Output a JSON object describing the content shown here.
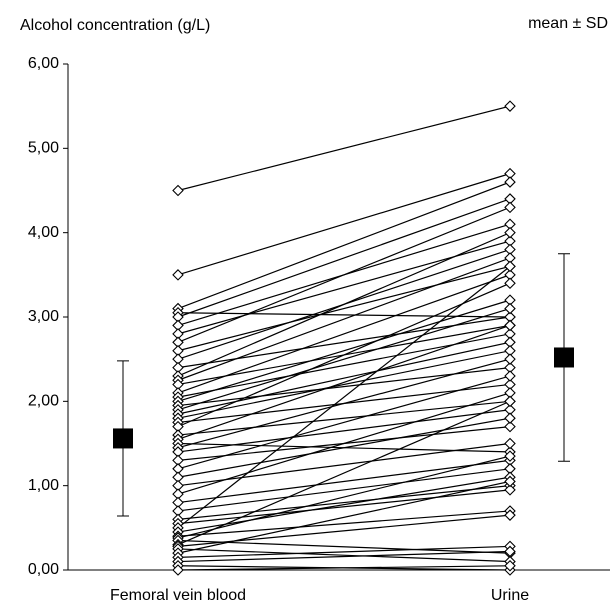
{
  "chart_data": {
    "type": "paired",
    "title": "Alcohol concentration (g/L)",
    "annotation": "mean ± SD",
    "categories": [
      "Femoral vein blood",
      "Urine"
    ],
    "ylim": [
      0,
      6
    ],
    "yticks": [
      {
        "value": 0,
        "label": "0,00"
      },
      {
        "value": 1,
        "label": "1,00"
      },
      {
        "value": 2,
        "label": "2,00"
      },
      {
        "value": 3,
        "label": "3,00"
      },
      {
        "value": 4,
        "label": "4,00"
      },
      {
        "value": 5,
        "label": "5,00"
      },
      {
        "value": 6,
        "label": "6,00"
      }
    ],
    "color": "#000000",
    "summary": [
      {
        "mean": 1.56,
        "sd": 0.92
      },
      {
        "mean": 2.52,
        "sd": 1.23
      }
    ],
    "series": [
      {
        "values": [
          4.5,
          5.5
        ]
      },
      {
        "values": [
          3.5,
          4.7
        ]
      },
      {
        "values": [
          3.1,
          4.6
        ]
      },
      {
        "values": [
          3.05,
          3.0
        ]
      },
      {
        "values": [
          3.0,
          4.4
        ]
      },
      {
        "values": [
          2.9,
          4.1
        ]
      },
      {
        "values": [
          2.8,
          3.9
        ]
      },
      {
        "values": [
          2.7,
          4.3
        ]
      },
      {
        "values": [
          2.6,
          3.6
        ]
      },
      {
        "values": [
          2.5,
          3.8
        ]
      },
      {
        "values": [
          2.4,
          3.0
        ]
      },
      {
        "values": [
          2.3,
          4.0
        ]
      },
      {
        "values": [
          2.25,
          3.7
        ]
      },
      {
        "values": [
          2.2,
          2.9
        ]
      },
      {
        "values": [
          2.1,
          3.5
        ]
      },
      {
        "values": [
          2.05,
          2.8
        ]
      },
      {
        "values": [
          2.0,
          3.2
        ]
      },
      {
        "values": [
          1.95,
          2.4
        ]
      },
      {
        "values": [
          1.9,
          3.1
        ]
      },
      {
        "values": [
          1.85,
          2.7
        ]
      },
      {
        "values": [
          1.8,
          2.6
        ]
      },
      {
        "values": [
          1.75,
          2.2
        ]
      },
      {
        "values": [
          1.7,
          3.4
        ]
      },
      {
        "values": [
          1.6,
          2.0
        ]
      },
      {
        "values": [
          1.55,
          2.9
        ]
      },
      {
        "values": [
          1.5,
          1.4
        ]
      },
      {
        "values": [
          1.45,
          2.5
        ]
      },
      {
        "values": [
          1.4,
          1.9
        ]
      },
      {
        "values": [
          1.3,
          1.7
        ]
      },
      {
        "values": [
          1.2,
          2.3
        ]
      },
      {
        "values": [
          1.1,
          1.8
        ]
      },
      {
        "values": [
          1.0,
          1.5
        ]
      },
      {
        "values": [
          0.9,
          2.1
        ]
      },
      {
        "values": [
          0.8,
          1.3
        ]
      },
      {
        "values": [
          0.7,
          1.2
        ]
      },
      {
        "values": [
          0.6,
          1.0
        ]
      },
      {
        "values": [
          0.55,
          0.95
        ]
      },
      {
        "values": [
          0.5,
          3.6
        ]
      },
      {
        "values": [
          0.45,
          1.1
        ]
      },
      {
        "values": [
          0.4,
          0.7
        ]
      },
      {
        "values": [
          0.38,
          1.35
        ]
      },
      {
        "values": [
          0.35,
          0.2
        ]
      },
      {
        "values": [
          0.3,
          2.0
        ]
      },
      {
        "values": [
          0.28,
          0.65
        ]
      },
      {
        "values": [
          0.25,
          0.1
        ]
      },
      {
        "values": [
          0.2,
          1.05
        ]
      },
      {
        "values": [
          0.15,
          0.28
        ]
      },
      {
        "values": [
          0.1,
          0.22
        ]
      },
      {
        "values": [
          0.05,
          0.0
        ]
      },
      {
        "values": [
          0.0,
          0.05
        ]
      }
    ]
  }
}
